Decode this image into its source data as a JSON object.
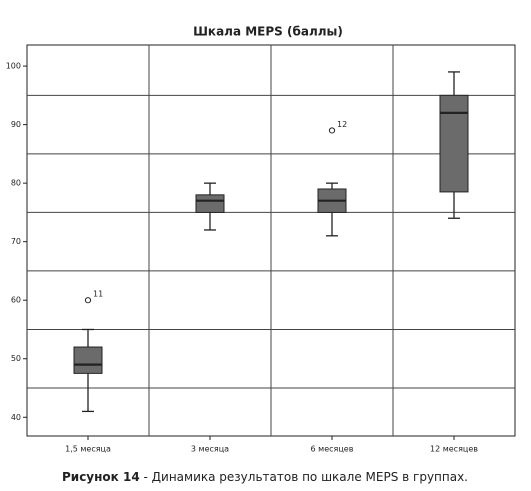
{
  "chart_data": {
    "type": "box",
    "title": "Шкала MEPS (баллы)",
    "categories": [
      "1,5 месяца",
      "3 месяца",
      "6 месяцев",
      "12 месяцев"
    ],
    "boxes": [
      {
        "min": 41,
        "q1": 47.5,
        "median": 49,
        "q3": 52,
        "max": 55
      },
      {
        "min": 72,
        "q1": 75,
        "median": 77,
        "q3": 78,
        "max": 80
      },
      {
        "min": 71,
        "q1": 75,
        "median": 77,
        "q3": 79,
        "max": 80
      },
      {
        "min": 74,
        "q1": 78.5,
        "median": 92,
        "q3": 95,
        "max": 99
      }
    ],
    "outliers": [
      {
        "category": 0,
        "value": 60,
        "label": "11"
      },
      {
        "category": 2,
        "value": 89,
        "label": "12"
      }
    ],
    "color": "#6b6b6b",
    "ylim": [
      36.8,
      103.6
    ],
    "yticks": [
      40,
      50,
      60,
      70,
      80,
      90,
      100
    ],
    "ygrid": [
      45,
      55,
      65,
      75,
      85,
      95
    ]
  },
  "caption": {
    "label": "Рисунок 14",
    "text": " - Динамика результатов по шкале MEPS в группах."
  }
}
